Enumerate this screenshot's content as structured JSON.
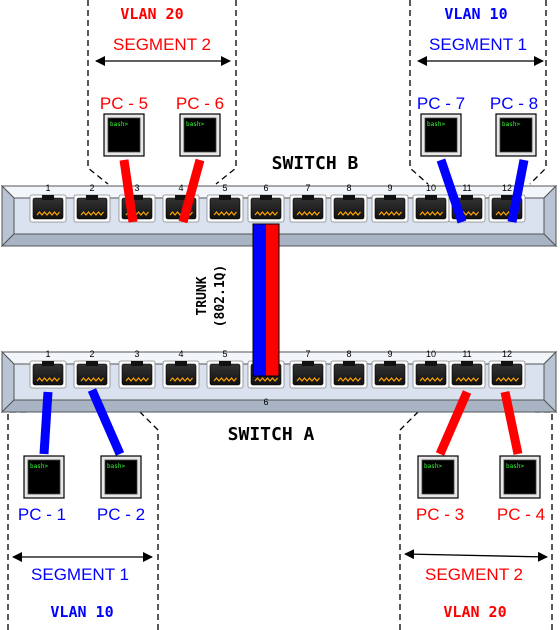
{
  "colors": {
    "red": "#ff0000",
    "blue": "#0000ff",
    "switch_body": "#d9e2ee",
    "port_jack": "#ffa500"
  },
  "switch_b": {
    "label": "SWITCH B",
    "ports": [
      "1",
      "2",
      "3",
      "4",
      "5",
      "6",
      "7",
      "8",
      "9",
      "10",
      "11",
      "12"
    ]
  },
  "switch_a": {
    "label": "SWITCH A",
    "ports": [
      "1",
      "2",
      "3",
      "4",
      "5",
      "6",
      "7",
      "8",
      "9",
      "10",
      "11",
      "12"
    ],
    "port6_label": "6"
  },
  "trunk": {
    "label": "TRUNK",
    "protocol": "(802.1Q)"
  },
  "top_left": {
    "vlan": "VLAN 20",
    "segment": "SEGMENT 2"
  },
  "top_right": {
    "vlan": "VLAN 10",
    "segment": "SEGMENT 1"
  },
  "bottom_left": {
    "vlan": "VLAN 10",
    "segment": "SEGMENT 1"
  },
  "bottom_right": {
    "vlan": "VLAN 20",
    "segment": "SEGMENT 2"
  },
  "pcs": {
    "pc1": "PC - 1",
    "pc2": "PC - 2",
    "pc3": "PC - 3",
    "pc4": "PC - 4",
    "pc5": "PC - 5",
    "pc6": "PC - 6",
    "pc7": "PC - 7",
    "pc8": "PC - 8"
  },
  "terminal_prompt": "bash>"
}
